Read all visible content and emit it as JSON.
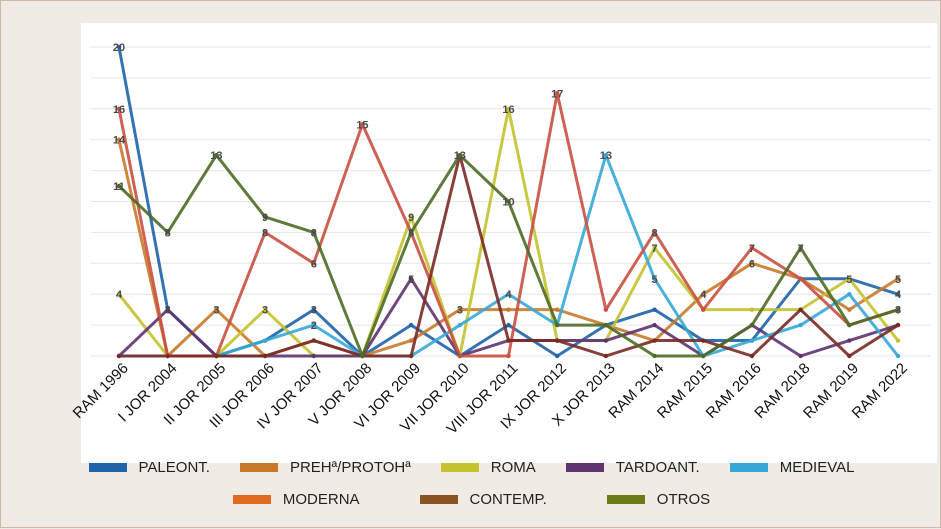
{
  "chart_data": {
    "type": "line",
    "title": "",
    "xlabel": "",
    "ylabel": "",
    "ylim": [
      0,
      20
    ],
    "grid": true,
    "legend_position": "bottom",
    "categories": [
      "RAM 1996",
      "I JOR 2004",
      "II JOR 2005",
      "III JOR 2006",
      "IV JOR 2007",
      "V JOR 2008",
      "VI JOR 2009",
      "VII JOR 2010",
      "VIII JOR 2011",
      "IX JOR 2012",
      "X JOR 2013",
      "RAM 2014",
      "RAM 2015",
      "RAM 2016",
      "RAM 2018",
      "RAM 2019",
      "RAM 2022"
    ],
    "series": [
      {
        "name": "PALEONT.",
        "color": "#1f63a8",
        "values": [
          20,
          3,
          0,
          1,
          3,
          0,
          2,
          0,
          2,
          0,
          2,
          3,
          1,
          1,
          5,
          5,
          4
        ]
      },
      {
        "name": "PREHª/PROTOHª",
        "color": "#c87a2a",
        "values": [
          14,
          0,
          3,
          0,
          1,
          0,
          1,
          3,
          3,
          3,
          2,
          1,
          4,
          6,
          5,
          3,
          5
        ]
      },
      {
        "name": "ROMA",
        "color": "#c4c22e",
        "values": [
          4,
          0,
          0,
          3,
          0,
          0,
          9,
          0,
          16,
          1,
          1,
          7,
          3,
          3,
          3,
          5,
          1
        ]
      },
      {
        "name": "TARDOANT.",
        "color": "#5e3370",
        "values": [
          0,
          3,
          0,
          0,
          0,
          0,
          5,
          0,
          1,
          1,
          1,
          2,
          0,
          2,
          0,
          1,
          2
        ]
      },
      {
        "name": "MEDIEVAL",
        "color": "#35a8d6",
        "values": [
          0,
          0,
          0,
          1,
          2,
          0,
          0,
          2,
          4,
          2,
          13,
          5,
          0,
          1,
          2,
          4,
          0
        ]
      },
      {
        "name": "MODERNA",
        "color": "#c95040",
        "values": [
          16,
          0,
          0,
          8,
          6,
          15,
          8,
          0,
          0,
          17,
          3,
          8,
          3,
          7,
          5,
          2,
          3
        ]
      },
      {
        "name": "CONTEMP.",
        "color": "#7a2a26",
        "values": [
          0,
          0,
          0,
          0,
          1,
          0,
          0,
          13,
          1,
          1,
          0,
          1,
          1,
          0,
          3,
          0,
          2
        ]
      },
      {
        "name": "OTROS",
        "color": "#4e6b26",
        "values": [
          11,
          8,
          13,
          9,
          8,
          0,
          8,
          13,
          10,
          2,
          2,
          0,
          0,
          2,
          7,
          2,
          3
        ]
      }
    ],
    "data_labels": [
      {
        "text": "20",
        "series": 0,
        "index": 0
      },
      {
        "text": "16",
        "series": 5,
        "index": 0
      },
      {
        "text": "14",
        "series": 1,
        "index": 0
      },
      {
        "text": "11",
        "series": 7,
        "index": 0
      },
      {
        "text": "4",
        "series": 2,
        "index": 0
      },
      {
        "text": "8",
        "series": 7,
        "index": 1
      },
      {
        "text": "3",
        "series": 0,
        "index": 1
      },
      {
        "text": "13",
        "series": 7,
        "index": 2
      },
      {
        "text": "3",
        "series": 1,
        "index": 2
      },
      {
        "text": "9",
        "series": 7,
        "index": 3
      },
      {
        "text": "8",
        "series": 5,
        "index": 3
      },
      {
        "text": "3",
        "series": 2,
        "index": 3
      },
      {
        "text": "8",
        "series": 7,
        "index": 4
      },
      {
        "text": "6",
        "series": 5,
        "index": 4
      },
      {
        "text": "3",
        "series": 0,
        "index": 4
      },
      {
        "text": "2",
        "series": 4,
        "index": 4
      },
      {
        "text": "15",
        "series": 5,
        "index": 5
      },
      {
        "text": "9",
        "series": 2,
        "index": 6
      },
      {
        "text": "8",
        "series": 7,
        "index": 6
      },
      {
        "text": "5",
        "series": 3,
        "index": 6
      },
      {
        "text": "13",
        "series": 7,
        "index": 7
      },
      {
        "text": "3",
        "series": 1,
        "index": 7
      },
      {
        "text": "16",
        "series": 2,
        "index": 8
      },
      {
        "text": "10",
        "series": 7,
        "index": 8
      },
      {
        "text": "4",
        "series": 4,
        "index": 8
      },
      {
        "text": "17",
        "series": 5,
        "index": 9
      },
      {
        "text": "13",
        "series": 4,
        "index": 10
      },
      {
        "text": "8",
        "series": 5,
        "index": 11
      },
      {
        "text": "7",
        "series": 2,
        "index": 11
      },
      {
        "text": "5",
        "series": 4,
        "index": 11
      },
      {
        "text": "4",
        "series": 1,
        "index": 12
      },
      {
        "text": "7",
        "series": 5,
        "index": 13
      },
      {
        "text": "6",
        "series": 1,
        "index": 13
      },
      {
        "text": "7",
        "series": 7,
        "index": 14
      },
      {
        "text": "5",
        "series": 0,
        "index": 15
      },
      {
        "text": "5",
        "series": 1,
        "index": 16
      },
      {
        "text": "4",
        "series": 0,
        "index": 16
      },
      {
        "text": "3",
        "series": 7,
        "index": 16
      }
    ]
  }
}
